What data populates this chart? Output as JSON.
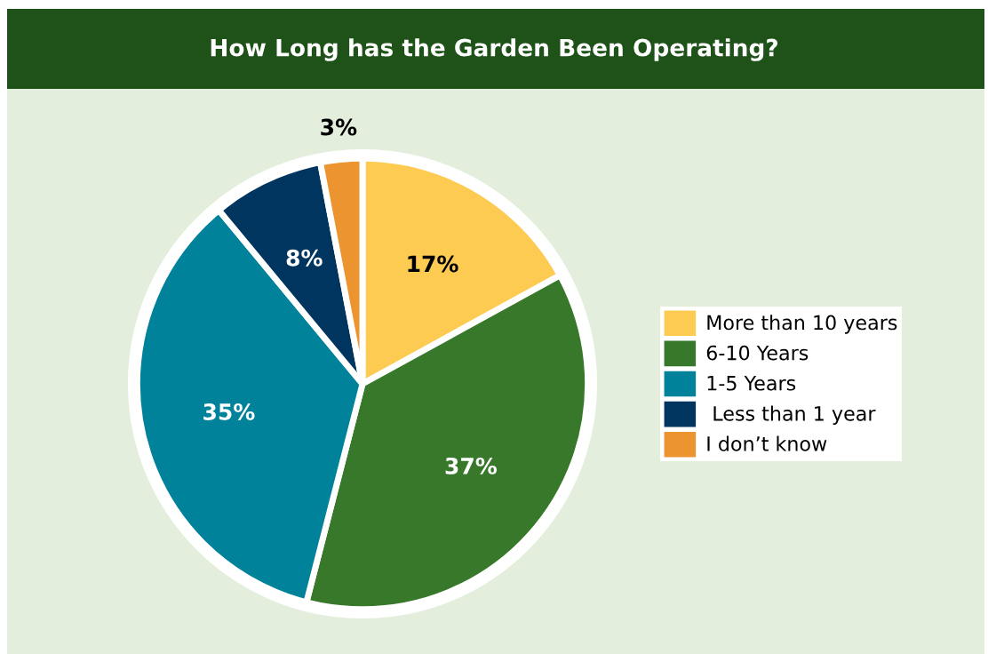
{
  "chart_data": {
    "type": "pie",
    "title": "How Long has the Garden Been Operating?",
    "categories": [
      "More than 10 years",
      "6-10 Years",
      "1-5 Years",
      " Less than 1 year",
      "I don’t know"
    ],
    "values": [
      17,
      37,
      35,
      8,
      3
    ],
    "colors": [
      "#fecb52",
      "#37782a",
      "#00829b",
      "#00355f",
      "#ec9430"
    ],
    "value_labels": [
      "17%",
      "37%",
      "35%",
      "8%",
      "3%"
    ],
    "legend": "right"
  }
}
